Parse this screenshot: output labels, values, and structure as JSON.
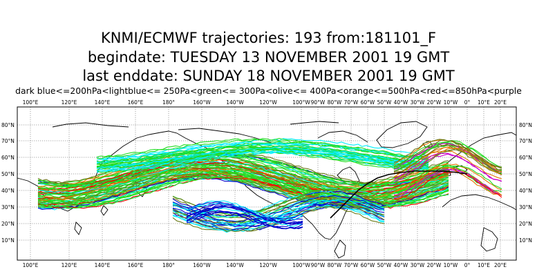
{
  "title": {
    "line1": "KNMI/ECMWF trajectories:  193 from:181101_F",
    "line2": "begindate:  TUESDAY   13 NOVEMBER  2001 19 GMT",
    "line3": "last enddate:  SUNDAY    18 NOVEMBER  2001 19 GMT"
  },
  "legend": "dark blue<=200hPa<lightblue<= 250Pa<green<= 300Pa<olive<= 400Pa<orange<=500hPa<red<=850hPa<purple",
  "map": {
    "lon_labels": [
      "100°E",
      "120°E",
      "140°E",
      "160°E",
      "180°",
      "160°W",
      "140°W",
      "120°W",
      "100°W",
      "90°W",
      "80°W",
      "70°W",
      "60°W",
      "50°W",
      "40°W",
      "30°W",
      "20°W",
      "10°W",
      "0°",
      "10°E",
      "20°E"
    ],
    "lat_labels": [
      "80°N",
      "70°N",
      "60°N",
      "50°N",
      "40°N",
      "30°N",
      "20°N",
      "10°N"
    ],
    "trajectory_count": 193,
    "colors": {
      "dark_blue": "#0000cc",
      "light_blue": "#00eeff",
      "green": "#22dd22",
      "olive": "#6b7a1a",
      "orange": "#e07800",
      "red": "#ff0000",
      "purple": "#cc00cc",
      "highlight_track": "#000000"
    }
  }
}
